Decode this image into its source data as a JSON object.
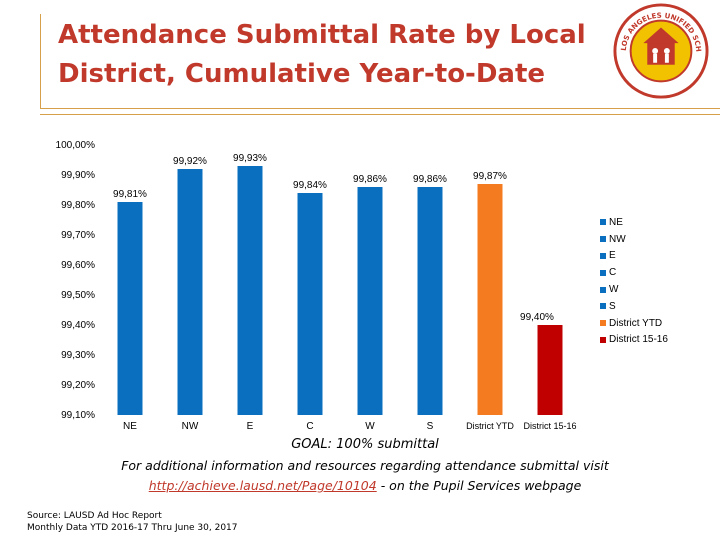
{
  "slide": {
    "title_line1": "Attendance Submittal Rate by Local",
    "title_line2": "District, Cumulative Year-to-Date"
  },
  "logo": {
    "icon": "lausd-seal-icon",
    "text": "LOS ANGELES UNIFIED SCHOOL DISTRICT · PUPIL SERVICES"
  },
  "chart_data": {
    "type": "bar",
    "title": "",
    "xlabel": "",
    "ylabel": "",
    "ylim": [
      99.1,
      100.0
    ],
    "yticks": [
      "100,00%",
      "99,90%",
      "99,80%",
      "99,70%",
      "99,60%",
      "99,50%",
      "99,40%",
      "99,30%",
      "99,20%",
      "99,10%"
    ],
    "categories": [
      "NE",
      "NW",
      "E",
      "C",
      "W",
      "S",
      "District YTD",
      "District 15-16"
    ],
    "values": [
      99.81,
      99.92,
      99.93,
      99.84,
      99.86,
      99.86,
      99.87,
      99.4
    ],
    "data_labels": [
      "99,81%",
      "99,92%",
      "99,93%",
      "99,84%",
      "99,86%",
      "99,86%",
      "99,87%",
      "99,40%"
    ],
    "colors": [
      "#0b6fbf",
      "#0b6fbf",
      "#0b6fbf",
      "#0b6fbf",
      "#0b6fbf",
      "#0b6fbf",
      "#f47b20",
      "#c00000"
    ],
    "legend": [
      "NE",
      "NW",
      "E",
      "C",
      "W",
      "S",
      "District YTD",
      "District 15-16"
    ],
    "legend_position": "right",
    "grid": false
  },
  "footer": {
    "goal": "GOAL: 100% submittal",
    "info_line1": "For additional information and resources regarding attendance submittal visit",
    "link": "http://achieve.lausd.net/Page/10104",
    "info_suffix": "- on the Pupil Services webpage",
    "source_line1": "Source: LAUSD Ad Hoc Report",
    "source_line2": "Monthly Data YTD 2016-17 Thru June 30, 2017"
  }
}
